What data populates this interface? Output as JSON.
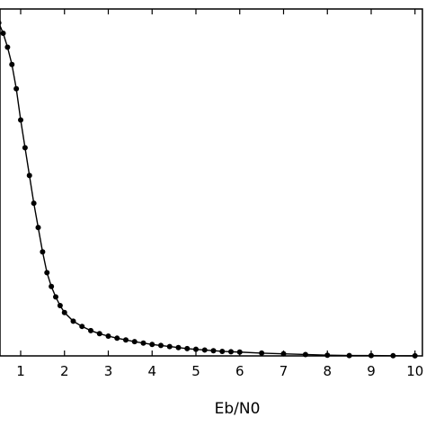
{
  "chart_data": {
    "type": "line",
    "xlabel": "Eb/N0",
    "ylabel": "",
    "title": "",
    "xlim": [
      0.5,
      10.3
    ],
    "ylim": [
      0,
      1.0
    ],
    "x_ticks": [
      "1",
      "2",
      "3",
      "4",
      "5",
      "6",
      "7",
      "8",
      "9",
      "10"
    ],
    "grid": false,
    "series": [
      {
        "line_color": "#000000",
        "marker": "filled-circle",
        "x": [
          0.5,
          0.6,
          0.7,
          0.8,
          0.9,
          1.0,
          1.1,
          1.2,
          1.3,
          1.4,
          1.5,
          1.6,
          1.7,
          1.8,
          1.9,
          2.0,
          2.2,
          2.4,
          2.6,
          2.8,
          3.0,
          3.2,
          3.4,
          3.6,
          3.8,
          4.0,
          4.2,
          4.4,
          4.6,
          4.8,
          5.0,
          5.2,
          5.4,
          5.6,
          5.8,
          6.0,
          6.5,
          7.0,
          7.5,
          8.0,
          8.5,
          9.0,
          9.5,
          10.0
        ],
        "y": [
          0.96,
          0.93,
          0.89,
          0.84,
          0.77,
          0.68,
          0.6,
          0.52,
          0.44,
          0.37,
          0.3,
          0.24,
          0.2,
          0.17,
          0.145,
          0.125,
          0.1,
          0.085,
          0.073,
          0.064,
          0.057,
          0.051,
          0.046,
          0.041,
          0.037,
          0.033,
          0.03,
          0.027,
          0.024,
          0.021,
          0.019,
          0.017,
          0.015,
          0.013,
          0.012,
          0.011,
          0.008,
          0.006,
          0.004,
          0.002,
          0.001,
          0.001,
          0.0005,
          0.0003
        ]
      }
    ]
  }
}
